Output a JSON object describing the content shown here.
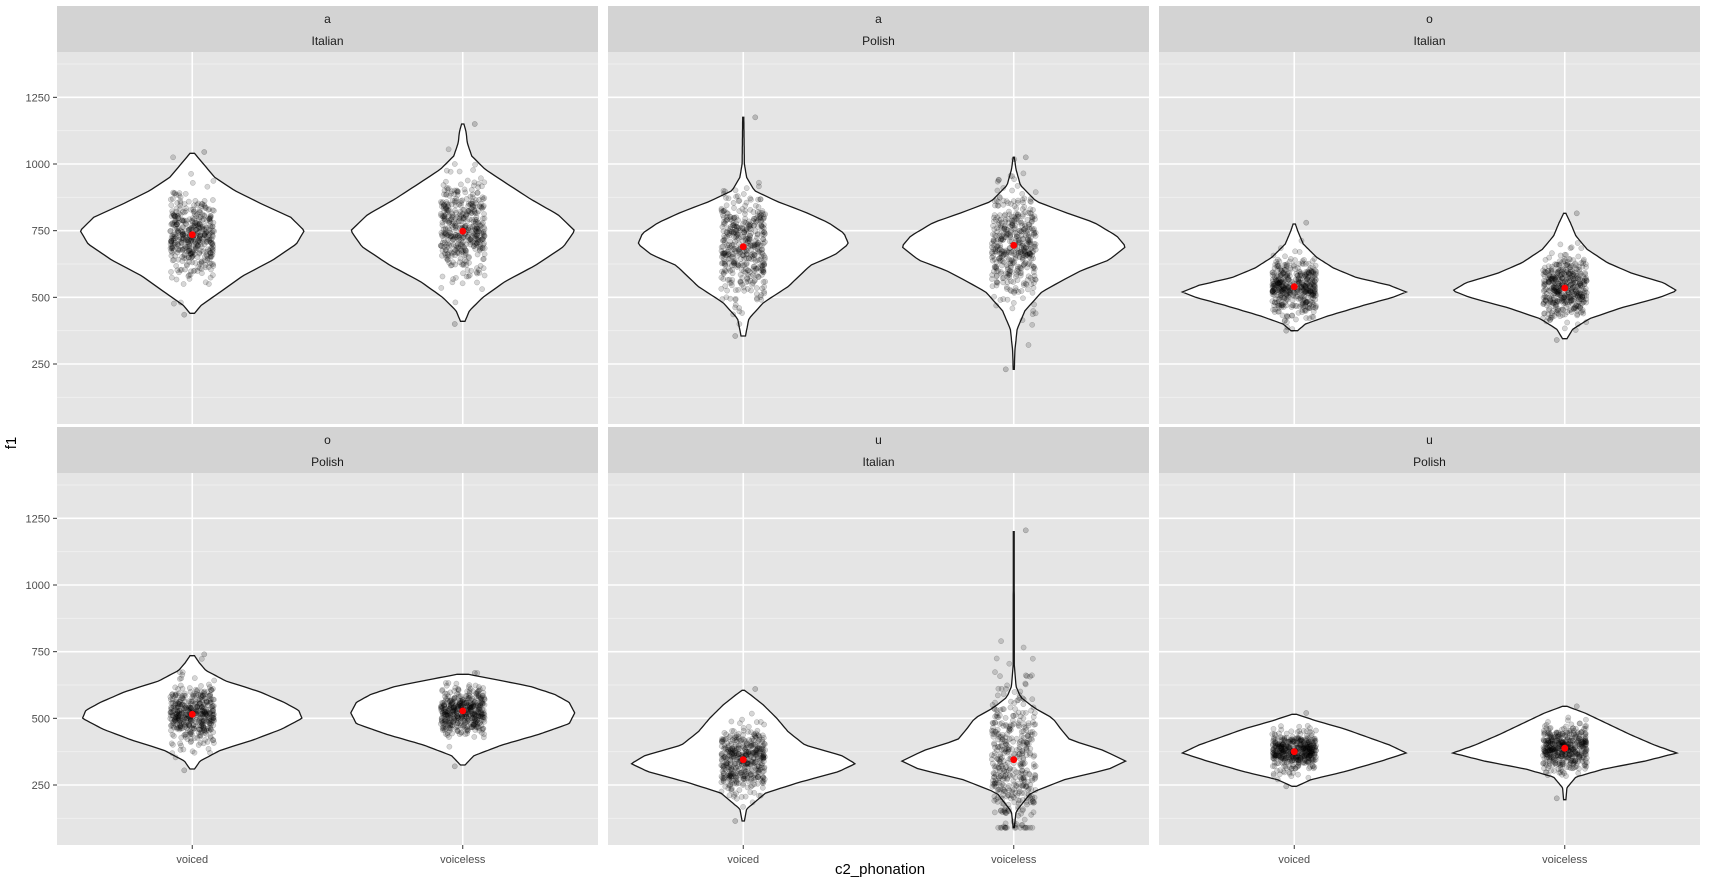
{
  "chart_data": {
    "type": "violin",
    "xlabel": "c2_phonation",
    "ylabel": "f1",
    "x_categories": [
      "voiced",
      "voiceless"
    ],
    "y_ticks": [
      250,
      500,
      750,
      1000,
      1250
    ],
    "ylim": [
      25,
      1420
    ],
    "grid": true,
    "mean_color": "#ff0000",
    "violin_fill": "#ffffff",
    "panel_background": "#e5e5e5",
    "strip_background": "#d3d3d3",
    "point_color": "#000000",
    "panels": [
      {
        "vowel": "a",
        "language": "Italian",
        "groups": [
          {
            "category": "voiced",
            "mean": 735,
            "ymin": 440,
            "ymax": 1040,
            "points_range": [
              435,
              1045
            ],
            "density": [
              [
                440,
                0.02
              ],
              [
                470,
                0.08
              ],
              [
                520,
                0.25
              ],
              [
                580,
                0.45
              ],
              [
                640,
                0.72
              ],
              [
                700,
                0.93
              ],
              [
                750,
                1.0
              ],
              [
                800,
                0.88
              ],
              [
                850,
                0.62
              ],
              [
                900,
                0.38
              ],
              [
                950,
                0.2
              ],
              [
                1000,
                0.1
              ],
              [
                1040,
                0.02
              ]
            ]
          },
          {
            "category": "voiceless",
            "mean": 748,
            "ymin": 410,
            "ymax": 1150,
            "points_range": [
              400,
              1150
            ],
            "density": [
              [
                410,
                0.02
              ],
              [
                450,
                0.06
              ],
              [
                500,
                0.18
              ],
              [
                560,
                0.38
              ],
              [
                620,
                0.65
              ],
              [
                690,
                0.9
              ],
              [
                750,
                1.0
              ],
              [
                810,
                0.85
              ],
              [
                870,
                0.6
              ],
              [
                930,
                0.38
              ],
              [
                980,
                0.2
              ],
              [
                1030,
                0.08
              ],
              [
                1080,
                0.04
              ],
              [
                1120,
                0.03
              ],
              [
                1150,
                0.01
              ]
            ]
          }
        ]
      },
      {
        "vowel": "a",
        "language": "Polish",
        "groups": [
          {
            "category": "voiced",
            "mean": 690,
            "ymin": 355,
            "ymax": 1175,
            "points_range": [
              355,
              1175
            ],
            "density": [
              [
                355,
                0.02
              ],
              [
                420,
                0.05
              ],
              [
                480,
                0.18
              ],
              [
                540,
                0.4
              ],
              [
                580,
                0.5
              ],
              [
                620,
                0.6
              ],
              [
                660,
                0.82
              ],
              [
                700,
                0.94
              ],
              [
                740,
                0.9
              ],
              [
                780,
                0.76
              ],
              [
                820,
                0.55
              ],
              [
                860,
                0.3
              ],
              [
                900,
                0.1
              ],
              [
                950,
                0.03
              ],
              [
                1000,
                0.01
              ],
              [
                1175,
                0.005
              ]
            ]
          },
          {
            "category": "voiceless",
            "mean": 695,
            "ymin": 230,
            "ymax": 1025,
            "points_range": [
              230,
              1025
            ],
            "density": [
              [
                230,
                0.005
              ],
              [
                300,
                0.01
              ],
              [
                380,
                0.03
              ],
              [
                450,
                0.1
              ],
              [
                520,
                0.25
              ],
              [
                560,
                0.42
              ],
              [
                600,
                0.6
              ],
              [
                640,
                0.85
              ],
              [
                690,
                1.0
              ],
              [
                730,
                0.92
              ],
              [
                780,
                0.72
              ],
              [
                820,
                0.45
              ],
              [
                860,
                0.2
              ],
              [
                920,
                0.06
              ],
              [
                980,
                0.02
              ],
              [
                1025,
                0.005
              ]
            ]
          }
        ]
      },
      {
        "vowel": "o",
        "language": "Italian",
        "groups": [
          {
            "category": "voiced",
            "mean": 540,
            "ymin": 375,
            "ymax": 775,
            "points_range": [
              375,
              780
            ],
            "density": [
              [
                375,
                0.03
              ],
              [
                400,
                0.1
              ],
              [
                430,
                0.3
              ],
              [
                470,
                0.62
              ],
              [
                500,
                0.88
              ],
              [
                520,
                1.0
              ],
              [
                545,
                0.85
              ],
              [
                575,
                0.55
              ],
              [
                610,
                0.35
              ],
              [
                650,
                0.2
              ],
              [
                700,
                0.08
              ],
              [
                750,
                0.03
              ],
              [
                775,
                0.01
              ]
            ]
          },
          {
            "category": "voiceless",
            "mean": 535,
            "ymin": 345,
            "ymax": 815,
            "points_range": [
              340,
              815
            ],
            "density": [
              [
                345,
                0.02
              ],
              [
                380,
                0.07
              ],
              [
                420,
                0.22
              ],
              [
                460,
                0.5
              ],
              [
                500,
                0.85
              ],
              [
                525,
                1.0
              ],
              [
                555,
                0.88
              ],
              [
                590,
                0.6
              ],
              [
                630,
                0.38
              ],
              [
                680,
                0.2
              ],
              [
                730,
                0.1
              ],
              [
                780,
                0.05
              ],
              [
                815,
                0.01
              ]
            ]
          }
        ]
      },
      {
        "vowel": "o",
        "language": "Polish",
        "groups": [
          {
            "category": "voiced",
            "mean": 515,
            "ymin": 310,
            "ymax": 735,
            "points_range": [
              305,
              740
            ],
            "density": [
              [
                310,
                0.02
              ],
              [
                340,
                0.07
              ],
              [
                380,
                0.25
              ],
              [
                420,
                0.55
              ],
              [
                460,
                0.8
              ],
              [
                500,
                0.98
              ],
              [
                530,
                0.95
              ],
              [
                560,
                0.82
              ],
              [
                600,
                0.6
              ],
              [
                640,
                0.3
              ],
              [
                680,
                0.12
              ],
              [
                710,
                0.06
              ],
              [
                735,
                0.02
              ]
            ]
          },
          {
            "category": "voiceless",
            "mean": 528,
            "ymin": 325,
            "ymax": 665,
            "points_range": [
              320,
              670
            ],
            "density": [
              [
                325,
                0.02
              ],
              [
                360,
                0.1
              ],
              [
                400,
                0.35
              ],
              [
                440,
                0.68
              ],
              [
                480,
                0.95
              ],
              [
                520,
                1.0
              ],
              [
                560,
                0.95
              ],
              [
                590,
                0.82
              ],
              [
                620,
                0.6
              ],
              [
                645,
                0.3
              ],
              [
                665,
                0.05
              ]
            ]
          }
        ]
      },
      {
        "vowel": "u",
        "language": "Italian",
        "groups": [
          {
            "category": "voiced",
            "mean": 345,
            "ymin": 115,
            "ymax": 605,
            "points_range": [
              115,
              610
            ],
            "density": [
              [
                115,
                0.01
              ],
              [
                160,
                0.03
              ],
              [
                220,
                0.2
              ],
              [
                260,
                0.5
              ],
              [
                300,
                0.85
              ],
              [
                330,
                1.0
              ],
              [
                360,
                0.88
              ],
              [
                400,
                0.55
              ],
              [
                450,
                0.4
              ],
              [
                500,
                0.3
              ],
              [
                550,
                0.18
              ],
              [
                590,
                0.06
              ],
              [
                605,
                0.01
              ]
            ]
          },
          {
            "category": "voiceless",
            "mean": 345,
            "ymin": 90,
            "ymax": 1200,
            "points_range": [
              90,
              1205
            ],
            "density": [
              [
                90,
                0.005
              ],
              [
                150,
                0.02
              ],
              [
                220,
                0.15
              ],
              [
                270,
                0.45
              ],
              [
                310,
                0.85
              ],
              [
                340,
                1.0
              ],
              [
                380,
                0.8
              ],
              [
                420,
                0.5
              ],
              [
                460,
                0.42
              ],
              [
                500,
                0.35
              ],
              [
                540,
                0.18
              ],
              [
                580,
                0.06
              ],
              [
                620,
                0.02
              ],
              [
                700,
                0.005
              ],
              [
                1200,
                0.004
              ]
            ]
          }
        ]
      },
      {
        "vowel": "u",
        "language": "Polish",
        "groups": [
          {
            "category": "voiced",
            "mean": 375,
            "ymin": 245,
            "ymax": 515,
            "points_range": [
              245,
              520
            ],
            "density": [
              [
                245,
                0.02
              ],
              [
                270,
                0.15
              ],
              [
                300,
                0.45
              ],
              [
                340,
                0.78
              ],
              [
                370,
                1.0
              ],
              [
                400,
                0.85
              ],
              [
                430,
                0.65
              ],
              [
                460,
                0.45
              ],
              [
                490,
                0.2
              ],
              [
                515,
                0.02
              ]
            ]
          },
          {
            "category": "voiceless",
            "mean": 388,
            "ymin": 195,
            "ymax": 545,
            "points_range": [
              200,
              545
            ],
            "density": [
              [
                195,
                0.01
              ],
              [
                240,
                0.02
              ],
              [
                280,
                0.1
              ],
              [
                310,
                0.35
              ],
              [
                340,
                0.72
              ],
              [
                370,
                1.0
              ],
              [
                400,
                0.8
              ],
              [
                440,
                0.58
              ],
              [
                480,
                0.38
              ],
              [
                520,
                0.18
              ],
              [
                545,
                0.02
              ]
            ]
          }
        ]
      }
    ]
  }
}
